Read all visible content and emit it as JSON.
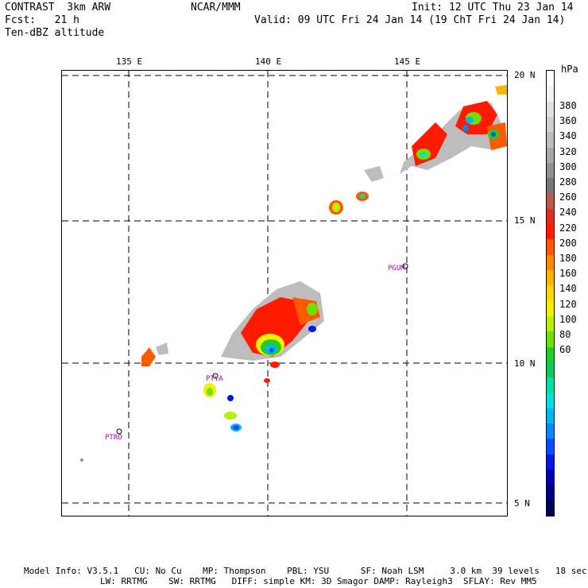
{
  "header": {
    "left_line1": "CONTRAST  3km ARW",
    "left_line2": "Fcst:   21 h",
    "left_line3": "Ten-dBZ altitude",
    "center": "NCAR/MMM",
    "right_line1": "Init: 12 UTC Thu 23 Jan 14",
    "right_line2": "Valid: 09 UTC Fri 24 Jan 14 (19 ChT Fri 24 Jan 14)"
  },
  "axes": {
    "lon_labels": [
      "135 E",
      "140 E",
      "145 E"
    ],
    "lat_labels": [
      "20 N",
      "15 N",
      "10 N",
      "5 N"
    ]
  },
  "colorbar": {
    "unit": "hPa",
    "labels": [
      "380",
      "360",
      "340",
      "320",
      "300",
      "280",
      "260",
      "240",
      "220",
      "200",
      "180",
      "160",
      "140",
      "120",
      "100",
      "80",
      "60"
    ],
    "colors": [
      "#ffffff",
      "#f2f2f2",
      "#e0e0e0",
      "#cfcfcf",
      "#bdbdbd",
      "#a8a8a8",
      "#909090",
      "#787878",
      "#b85a4a",
      "#d83020",
      "#ff1a00",
      "#ff5a00",
      "#ff8c00",
      "#ffb300",
      "#ffd800",
      "#f0f000",
      "#b8f000",
      "#70e000",
      "#20d020",
      "#10c860",
      "#00e0a0",
      "#00e0e0",
      "#00b8f0",
      "#0088ff",
      "#0050ff",
      "#0018e0",
      "#0000b0",
      "#000080",
      "#000050"
    ]
  },
  "stations": [
    "PGUM",
    "PTYA",
    "PTRO"
  ],
  "chart_data": {
    "type": "map",
    "title": "Ten-dBZ altitude",
    "units": "hPa",
    "lon_range": [
      132.6,
      148.6
    ],
    "lat_range": [
      4.5,
      20.5
    ],
    "gridlines_lon": [
      135,
      140,
      145
    ],
    "gridlines_lat": [
      5,
      10,
      15,
      20
    ],
    "stations": [
      {
        "id": "PGUM",
        "lon": 144.8,
        "lat": 13.5
      },
      {
        "id": "PTYA",
        "lon": 138.1,
        "lat": 9.5
      },
      {
        "id": "PTRO",
        "lon": 134.5,
        "lat": 7.3
      }
    ]
  },
  "footer": {
    "line1": "Model Info: V3.5.1   CU: No Cu    MP: Thompson    PBL: YSU      SF: Noah LSM     3.0 km  39 levels   18 sec",
    "line2": "LW: RRTMG    SW: RRTMG   DIFF: simple KM: 3D Smagor DAMP: Rayleigh3  SFLAY: Rev MM5"
  }
}
